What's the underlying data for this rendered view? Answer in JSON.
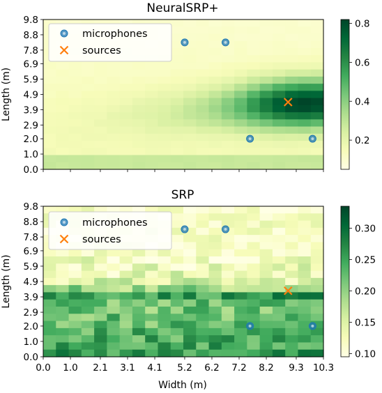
{
  "chart_data": [
    {
      "type": "heatmap",
      "title": "NeuralSRP+",
      "xlabel": "",
      "ylabel": "Length (m)",
      "x_ticks": [
        "0.0",
        "1.0",
        "2.1",
        "3.1",
        "4.1",
        "5.2",
        "6.2",
        "7.2",
        "8.2",
        "9.3",
        "10.3"
      ],
      "y_ticks": [
        "0.0",
        "1.0",
        "2.0",
        "2.9",
        "3.9",
        "4.9",
        "5.9",
        "6.9",
        "7.8",
        "8.8",
        "9.8"
      ],
      "xlim": [
        0.0,
        10.3
      ],
      "ylim": [
        0.0,
        9.8
      ],
      "grid": false,
      "colormap": "YlGn",
      "colorbar_ticks": [
        "0.2",
        "0.4",
        "0.6",
        "0.8"
      ],
      "colorbar_range": [
        0.05,
        0.82
      ],
      "legend": {
        "placement": "top-left",
        "entries": [
          "microphones",
          "sources"
        ]
      },
      "microphones": [
        {
          "x": 5.2,
          "y": 8.3
        },
        {
          "x": 6.7,
          "y": 8.3
        },
        {
          "x": 7.6,
          "y": 2.0
        },
        {
          "x": 9.9,
          "y": 2.0
        }
      ],
      "sources": [
        {
          "x": 9.0,
          "y": 4.4
        }
      ],
      "field": {
        "peak": {
          "x": 9.6,
          "y": 4.3
        },
        "max": 0.8,
        "min": 0.06
      }
    },
    {
      "type": "heatmap",
      "title": "SRP",
      "xlabel": "Width (m)",
      "ylabel": "Length (m)",
      "x_ticks": [
        "0.0",
        "1.0",
        "2.1",
        "3.1",
        "4.1",
        "5.2",
        "6.2",
        "7.2",
        "8.2",
        "9.3",
        "10.3"
      ],
      "y_ticks": [
        "0.0",
        "1.0",
        "2.0",
        "2.9",
        "3.9",
        "4.9",
        "5.9",
        "6.9",
        "7.8",
        "8.8",
        "9.8"
      ],
      "xlim": [
        0.0,
        10.3
      ],
      "ylim": [
        0.0,
        9.8
      ],
      "grid": false,
      "colormap": "YlGn",
      "colorbar_ticks": [
        "0.10",
        "0.15",
        "0.20",
        "0.25",
        "0.30"
      ],
      "colorbar_range": [
        0.095,
        0.335
      ],
      "legend": {
        "placement": "top-left",
        "entries": [
          "microphones",
          "sources"
        ]
      },
      "microphones": [
        {
          "x": 5.2,
          "y": 8.3
        },
        {
          "x": 6.7,
          "y": 8.3
        },
        {
          "x": 7.6,
          "y": 2.0
        },
        {
          "x": 9.9,
          "y": 2.0
        }
      ],
      "sources": [
        {
          "x": 9.0,
          "y": 4.3
        }
      ],
      "field": {
        "ridge_y": 4.2,
        "max": 0.33,
        "min": 0.1
      }
    }
  ],
  "colors": {
    "microphone": "#1f77b4",
    "source": "#ff7f0e"
  }
}
